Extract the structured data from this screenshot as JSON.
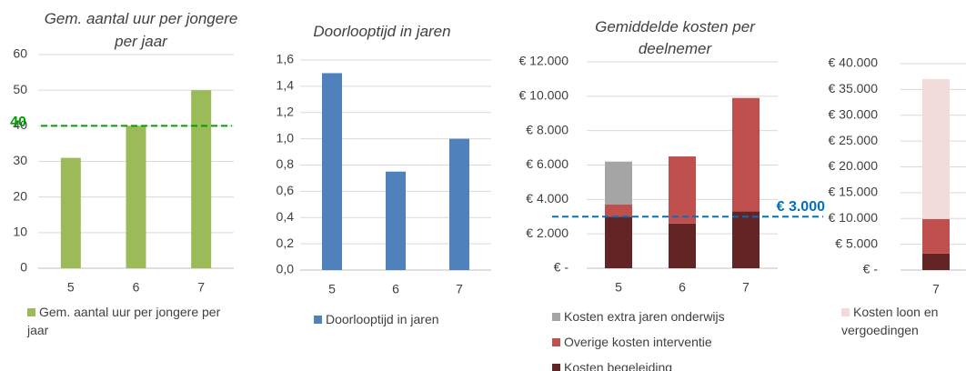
{
  "chart_data": [
    {
      "type": "bar",
      "title": "Gem. aantal uur per jongere per jaar",
      "categories": [
        "5",
        "6",
        "7"
      ],
      "series": [
        {
          "name": "Gem. aantal uur per jongere per jaar",
          "color": "#9bbb59",
          "values": [
            31,
            40,
            50
          ]
        }
      ],
      "ylim": [
        0,
        60
      ],
      "yticks": [
        0,
        10,
        20,
        30,
        40,
        50,
        60
      ],
      "grid": true,
      "reference_line": {
        "value": 40,
        "color": "#00a000"
      }
    },
    {
      "type": "bar",
      "title": "Doorlooptijd in jaren",
      "categories": [
        "5",
        "6",
        "7"
      ],
      "series": [
        {
          "name": "Doorlooptijd in jaren",
          "color": "#4f81bd",
          "values": [
            1.5,
            0.75,
            1.0
          ]
        }
      ],
      "ylim": [
        0,
        1.6
      ],
      "yticks": [
        {
          "value": 0,
          "label": "0,0"
        },
        {
          "value": 0.2,
          "label": "0,2"
        },
        {
          "value": 0.4,
          "label": "0,4"
        },
        {
          "value": 0.6,
          "label": "0,6"
        },
        {
          "value": 0.8,
          "label": "0,8"
        },
        {
          "value": 1.0,
          "label": "1,0"
        },
        {
          "value": 1.2,
          "label": "1,2"
        },
        {
          "value": 1.4,
          "label": "1,4"
        },
        {
          "value": 1.6,
          "label": "1,6"
        }
      ],
      "grid": true
    },
    {
      "type": "stacked_bar",
      "title": "Gemiddelde kosten per deelnemer",
      "categories": [
        "5",
        "6",
        "7"
      ],
      "series": [
        {
          "name": "Kosten begeleiding",
          "color": "#632523",
          "values": [
            3000,
            2600,
            3300
          ]
        },
        {
          "name": "Overige kosten interventie",
          "color": "#c0504d",
          "values": [
            700,
            3900,
            6600
          ]
        },
        {
          "name": "Kosten extra jaren onderwijs",
          "color": "#a5a5a5",
          "values": [
            2500,
            0,
            0
          ]
        }
      ],
      "ylim": [
        0,
        12000
      ],
      "yticks": [
        {
          "value": 0,
          "label": "€ -"
        },
        {
          "value": 2000,
          "label": "€ 2.000"
        },
        {
          "value": 4000,
          "label": "€ 4.000"
        },
        {
          "value": 6000,
          "label": "€ 6.000"
        },
        {
          "value": 8000,
          "label": "€ 8.000"
        },
        {
          "value": 10000,
          "label": "€ 10.000"
        },
        {
          "value": 12000,
          "label": "€ 12.000"
        }
      ],
      "grid": true,
      "reference_line": {
        "value": 3000,
        "label": "€ 3.000",
        "color": "#0070c0"
      }
    },
    {
      "type": "stacked_bar",
      "categories": [
        "7"
      ],
      "series": [
        {
          "color": "#632523",
          "values": [
            3200
          ]
        },
        {
          "color": "#c0504d",
          "values": [
            6700
          ]
        },
        {
          "name": "Kosten loon en vergoedingen",
          "color": "#f2dcdb",
          "values": [
            27100
          ]
        }
      ],
      "ylim": [
        0,
        40000
      ],
      "yticks": [
        {
          "value": 0,
          "label": "€ -"
        },
        {
          "value": 5000,
          "label": "€ 5.000"
        },
        {
          "value": 10000,
          "label": "€ 10.000"
        },
        {
          "value": 15000,
          "label": "€ 15.000"
        },
        {
          "value": 20000,
          "label": "€ 20.000"
        },
        {
          "value": 25000,
          "label": "€ 25.000"
        },
        {
          "value": 30000,
          "label": "€ 30.000"
        },
        {
          "value": 35000,
          "label": "€ 35.000"
        },
        {
          "value": 40000,
          "label": "€ 40.000"
        }
      ],
      "grid": true
    }
  ]
}
